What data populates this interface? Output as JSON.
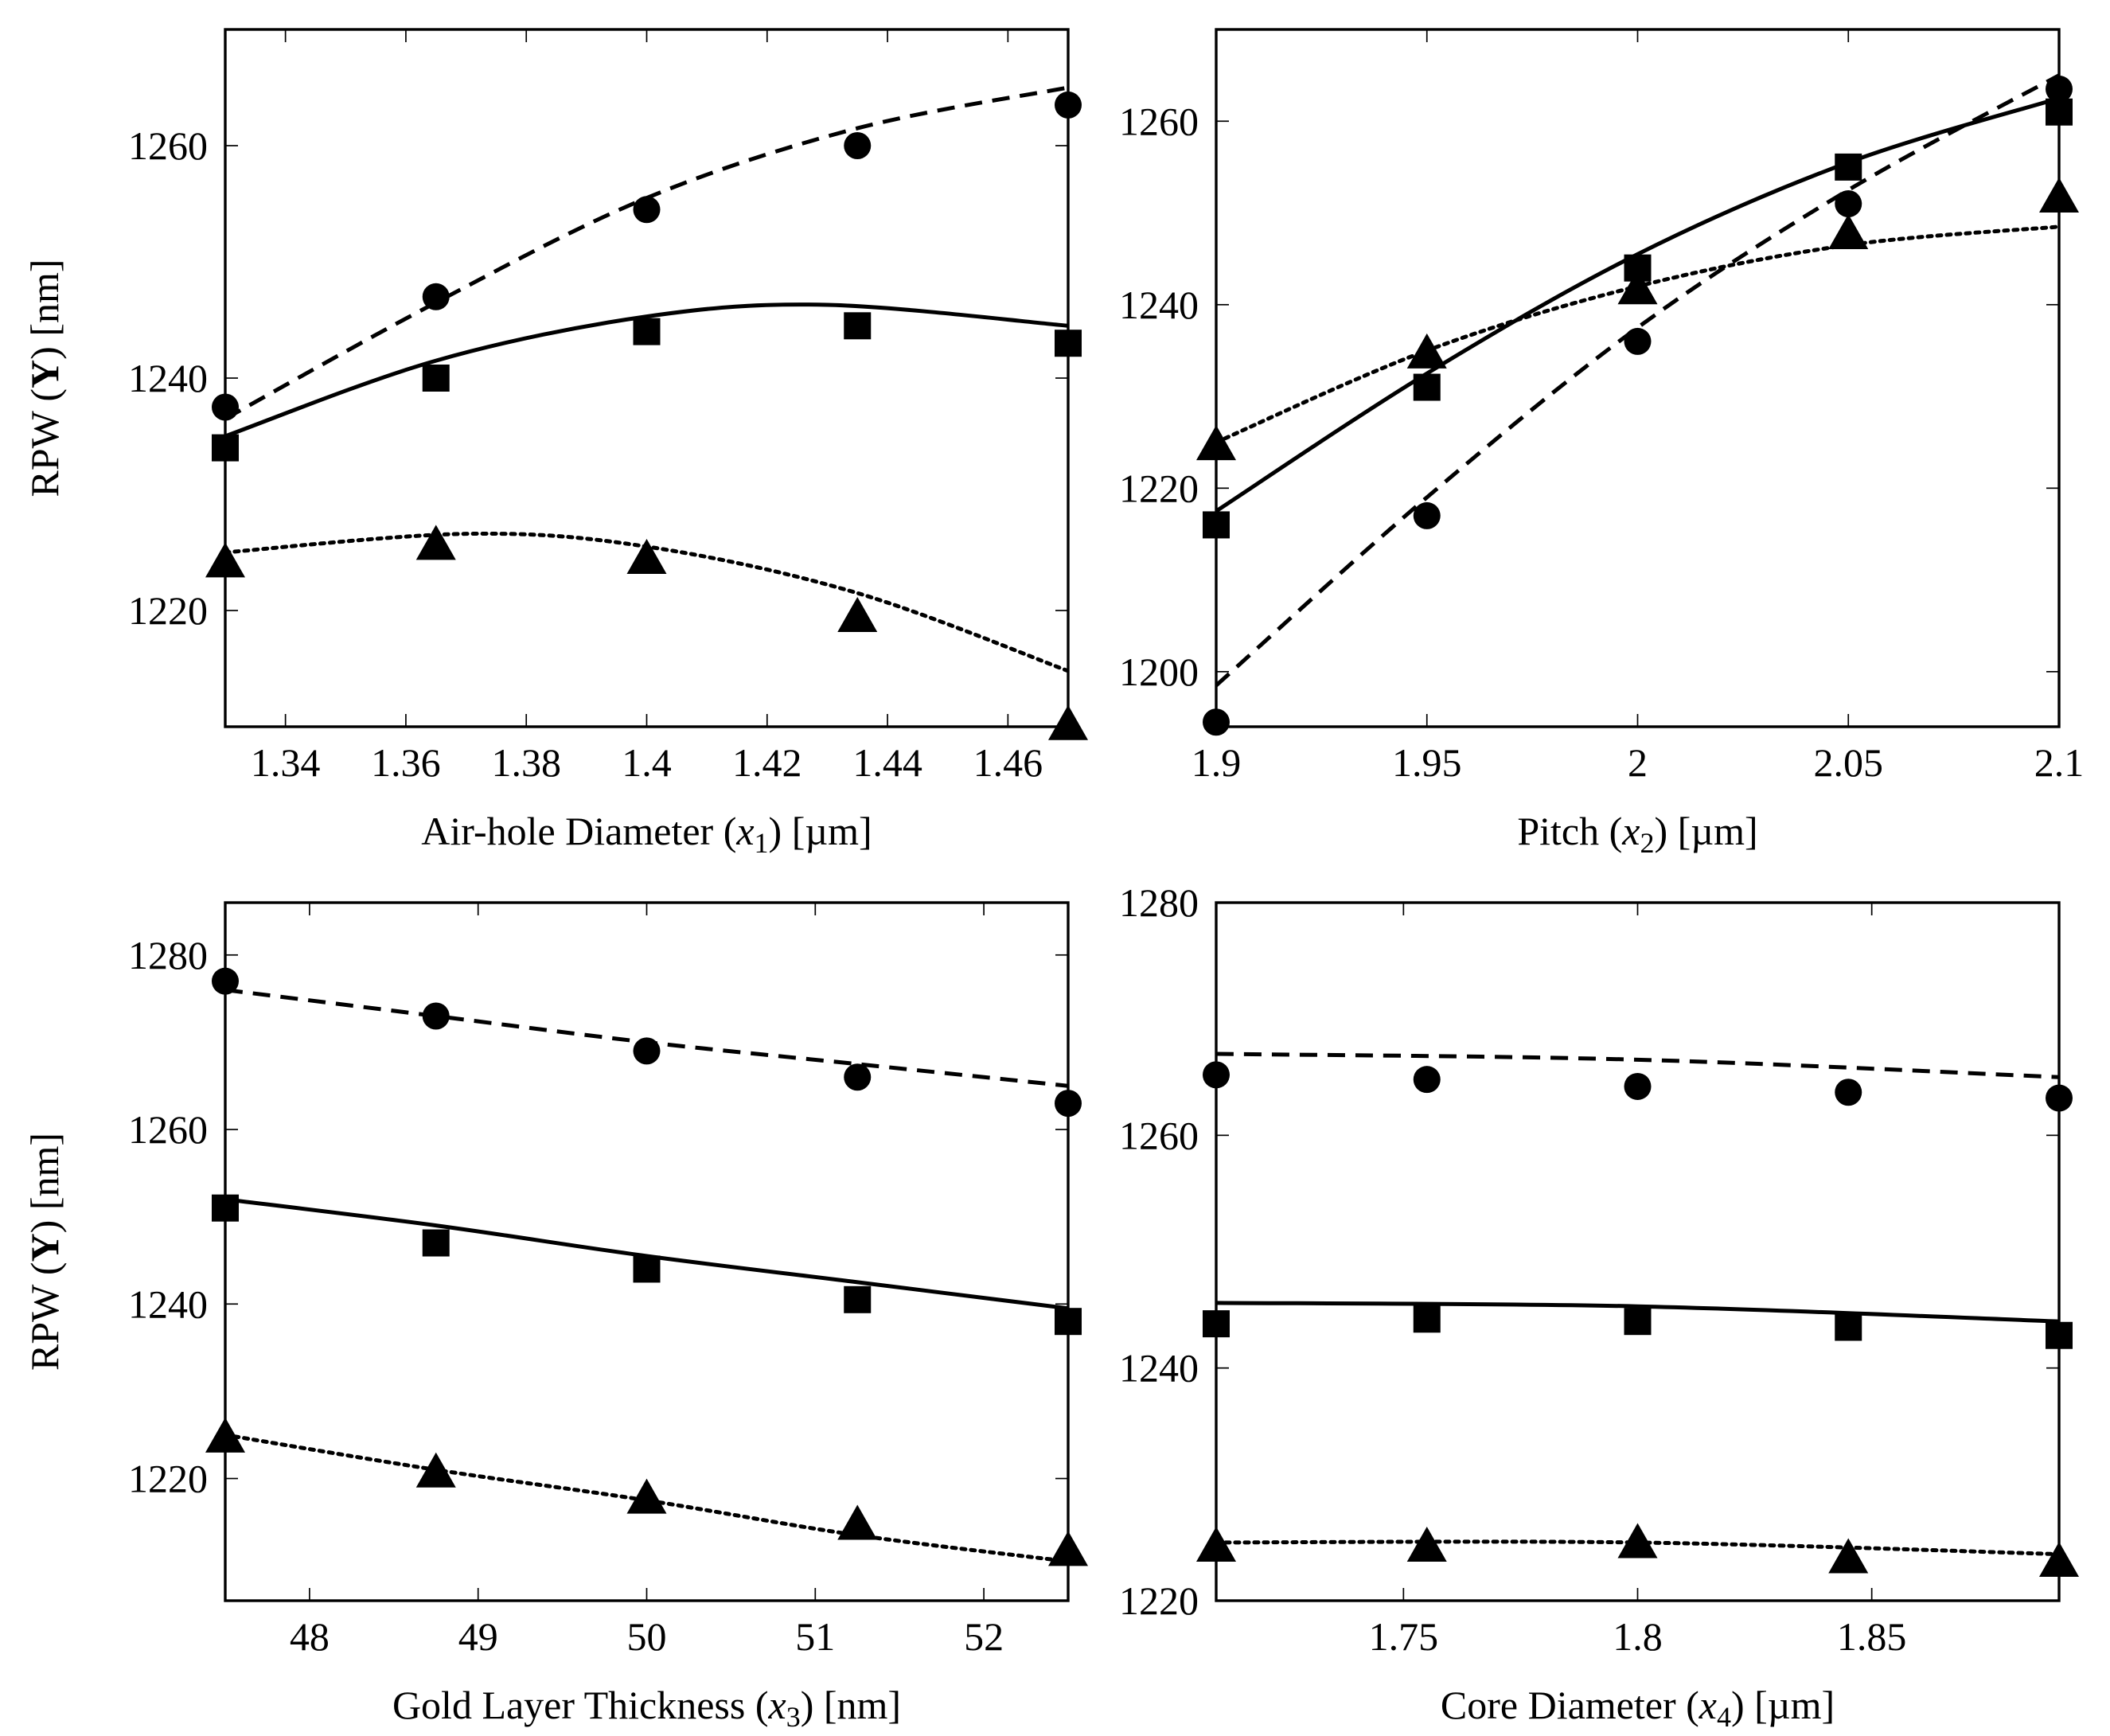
{
  "figure": {
    "description_free": true,
    "series_styles": [
      {
        "marker": "circle",
        "line": "dashed"
      },
      {
        "marker": "square",
        "line": "solid"
      },
      {
        "marker": "triangle",
        "line": "dotted"
      }
    ]
  },
  "chart_data": [
    {
      "type": "scatter",
      "xlabel": {
        "pre": "Air-hole Diameter (",
        "var": "x",
        "sub": "1",
        "post": ") [µm]"
      },
      "ylabel": {
        "pre": "RPW (",
        "bold": "Y",
        "post": ") [nm]"
      },
      "xlim": [
        1.33,
        1.47
      ],
      "ylim": [
        1210,
        1270
      ],
      "xticks": [
        1.34,
        1.36,
        1.38,
        1.4,
        1.42,
        1.44,
        1.46
      ],
      "xtick_labels": [
        "1.34",
        "1.36",
        "1.38",
        "1.4",
        "1.42",
        "1.44",
        "1.46"
      ],
      "yticks": [
        1220,
        1240,
        1260
      ],
      "ytick_labels": [
        "1220",
        "1240",
        "1260"
      ],
      "x": [
        1.33,
        1.365,
        1.4,
        1.435,
        1.47
      ],
      "series": [
        {
          "name": "circle-dashed",
          "values": [
            1237.5,
            1247,
            1254.5,
            1260,
            1263.5
          ],
          "fit": [
            [
              1.33,
              1236.5
            ],
            [
              1.365,
              1246.5
            ],
            [
              1.4,
              1255.5
            ],
            [
              1.435,
              1261.5
            ],
            [
              1.47,
              1265
            ]
          ]
        },
        {
          "name": "square-solid",
          "values": [
            1234,
            1240,
            1244,
            1244.5,
            1243
          ],
          "fit": [
            [
              1.33,
              1235
            ],
            [
              1.365,
              1241.5
            ],
            [
              1.4,
              1245.3
            ],
            [
              1.43,
              1246.3
            ],
            [
              1.47,
              1244.5
            ]
          ]
        },
        {
          "name": "triangle-dotted",
          "values": [
            1224,
            1225.5,
            1224.3,
            1219.3,
            1210
          ],
          "fit": [
            [
              1.33,
              1225
            ],
            [
              1.37,
              1226.6
            ],
            [
              1.4,
              1225.5
            ],
            [
              1.435,
              1221.5
            ],
            [
              1.47,
              1214.8
            ]
          ]
        }
      ]
    },
    {
      "type": "scatter",
      "xlabel": {
        "pre": "Pitch (",
        "var": "x",
        "sub": "2",
        "post": ") [µm]"
      },
      "ylabel": null,
      "xlim": [
        1.9,
        2.1
      ],
      "ylim": [
        1194,
        1270
      ],
      "xticks": [
        1.9,
        1.95,
        2.0,
        2.05,
        2.1
      ],
      "xtick_labels": [
        "1.9",
        "1.95",
        "2",
        "2.05",
        "2.1"
      ],
      "yticks": [
        1200,
        1220,
        1240,
        1260
      ],
      "ytick_labels": [
        "1200",
        "1220",
        "1240",
        "1260"
      ],
      "x": [
        1.9,
        1.95,
        2.0,
        2.05,
        2.1
      ],
      "series": [
        {
          "name": "circle-dashed",
          "values": [
            1194.5,
            1217,
            1236,
            1251,
            1263.5
          ],
          "fit": [
            [
              1.9,
              1198.5
            ],
            [
              1.95,
              1219
            ],
            [
              2.0,
              1237.5
            ],
            [
              2.05,
              1252.5
            ],
            [
              2.1,
              1265
            ]
          ]
        },
        {
          "name": "square-solid",
          "values": [
            1216,
            1231,
            1244,
            1255,
            1261
          ],
          "fit": [
            [
              1.9,
              1217.5
            ],
            [
              1.95,
              1232.5
            ],
            [
              2.0,
              1245.5
            ],
            [
              2.05,
              1255.5
            ],
            [
              2.1,
              1262.5
            ]
          ]
        },
        {
          "name": "triangle-dotted",
          "values": [
            1224.5,
            1234.5,
            1241.5,
            1247.5,
            1251.5
          ],
          "fit": [
            [
              1.9,
              1225
            ],
            [
              1.95,
              1235
            ],
            [
              2.0,
              1242
            ],
            [
              2.05,
              1246.5
            ],
            [
              2.1,
              1248.5
            ]
          ]
        }
      ]
    },
    {
      "type": "scatter",
      "xlabel": {
        "pre": "Gold Layer Thickness (",
        "var": "x",
        "sub": "3",
        "post": ") [nm]"
      },
      "ylabel": {
        "pre": "RPW (",
        "bold": "Y",
        "post": ") [nm]"
      },
      "xlim": [
        47.5,
        52.5
      ],
      "ylim": [
        1206,
        1286
      ],
      "xticks": [
        48,
        49,
        50,
        51,
        52
      ],
      "xtick_labels": [
        "48",
        "49",
        "50",
        "51",
        "52"
      ],
      "yticks": [
        1220,
        1240,
        1260,
        1280
      ],
      "ytick_labels": [
        "1220",
        "1240",
        "1260",
        "1280"
      ],
      "x": [
        47.5,
        48.75,
        50.0,
        51.25,
        52.5
      ],
      "series": [
        {
          "name": "circle-dashed",
          "values": [
            1277,
            1273,
            1269,
            1266,
            1263
          ],
          "fit": [
            [
              47.5,
              1276
            ],
            [
              48.75,
              1273
            ],
            [
              50.0,
              1270
            ],
            [
              51.25,
              1267.5
            ],
            [
              52.5,
              1265
            ]
          ]
        },
        {
          "name": "square-solid",
          "values": [
            1251,
            1247,
            1244,
            1240.5,
            1238
          ],
          "fit": [
            [
              47.5,
              1252
            ],
            [
              48.75,
              1249
            ],
            [
              50.0,
              1245.5
            ],
            [
              51.25,
              1242.5
            ],
            [
              52.5,
              1239.5
            ]
          ]
        },
        {
          "name": "triangle-dotted",
          "values": [
            1224.5,
            1220.5,
            1217.5,
            1214.5,
            1211.5
          ],
          "fit": [
            [
              47.5,
              1225
            ],
            [
              48.75,
              1221
            ],
            [
              50.0,
              1217.5
            ],
            [
              51.25,
              1213.5
            ],
            [
              52.5,
              1210.5
            ]
          ]
        }
      ]
    },
    {
      "type": "scatter",
      "xlabel": {
        "pre": "Core Diameter (",
        "var": "x",
        "sub": "4",
        "post": ") [µm]"
      },
      "ylabel": null,
      "xlim": [
        1.71,
        1.89
      ],
      "ylim": [
        1220,
        1280
      ],
      "xticks": [
        1.75,
        1.8,
        1.85
      ],
      "xtick_labels": [
        "1.75",
        "1.8",
        "1.85"
      ],
      "yticks": [
        1220,
        1240,
        1260,
        1280
      ],
      "ytick_labels": [
        "1220",
        "1240",
        "1260",
        "1280"
      ],
      "x": [
        1.71,
        1.755,
        1.8,
        1.845,
        1.89
      ],
      "series": [
        {
          "name": "circle-dashed",
          "values": [
            1265.2,
            1264.8,
            1264.2,
            1263.7,
            1263.2
          ],
          "fit": [
            [
              1.71,
              1267
            ],
            [
              1.8,
              1266.5
            ],
            [
              1.89,
              1265
            ]
          ]
        },
        {
          "name": "square-solid",
          "values": [
            1243.8,
            1244.2,
            1244,
            1243.5,
            1242.8
          ],
          "fit": [
            [
              1.71,
              1245.6
            ],
            [
              1.8,
              1245.3
            ],
            [
              1.89,
              1244
            ]
          ]
        },
        {
          "name": "triangle-dotted",
          "values": [
            1224.5,
            1224.5,
            1224.8,
            1223.5,
            1223.2
          ],
          "fit": [
            [
              1.71,
              1225
            ],
            [
              1.8,
              1225
            ],
            [
              1.89,
              1224
            ]
          ]
        }
      ]
    }
  ]
}
